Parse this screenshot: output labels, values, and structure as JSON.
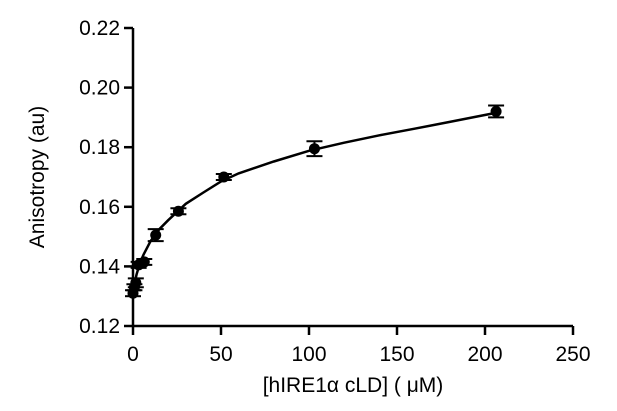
{
  "chart_data": {
    "type": "scatter",
    "title": "",
    "xlabel": "[hIRE1α  cLD] ( μM)",
    "ylabel": "Anisotropy (au)",
    "xlim": [
      0,
      250
    ],
    "ylim": [
      0.12,
      0.22
    ],
    "xticks": [
      "0",
      "50",
      "100",
      "150",
      "200",
      "250"
    ],
    "yticks": [
      "0.12",
      "0.14",
      "0.16",
      "0.18",
      "0.20",
      "0.22"
    ],
    "grid": false,
    "legend": "none",
    "series": [
      {
        "x": [
          0,
          0.8,
          1.6,
          3.2,
          6.4,
          12.9,
          25.8,
          51.6,
          103.1,
          206.3
        ],
        "y": [
          0.131,
          0.133,
          0.1345,
          0.1405,
          0.1415,
          0.1505,
          0.1585,
          0.17,
          0.1795,
          0.192
        ],
        "yerr": [
          0.001,
          0.001,
          0.0015,
          0.001,
          0.001,
          0.002,
          0.001,
          0.001,
          0.0025,
          0.002
        ]
      }
    ],
    "fit_curve": {
      "x": [
        0,
        1,
        2,
        4,
        6,
        10,
        15,
        20,
        30,
        40,
        50,
        60,
        80,
        100,
        120,
        140,
        160,
        180,
        206
      ],
      "y": [
        0.1315,
        0.1345,
        0.1372,
        0.1412,
        0.144,
        0.1485,
        0.1525,
        0.1555,
        0.161,
        0.1648,
        0.1685,
        0.1712,
        0.1752,
        0.1788,
        0.1815,
        0.184,
        0.1862,
        0.1885,
        0.1915
      ]
    }
  }
}
